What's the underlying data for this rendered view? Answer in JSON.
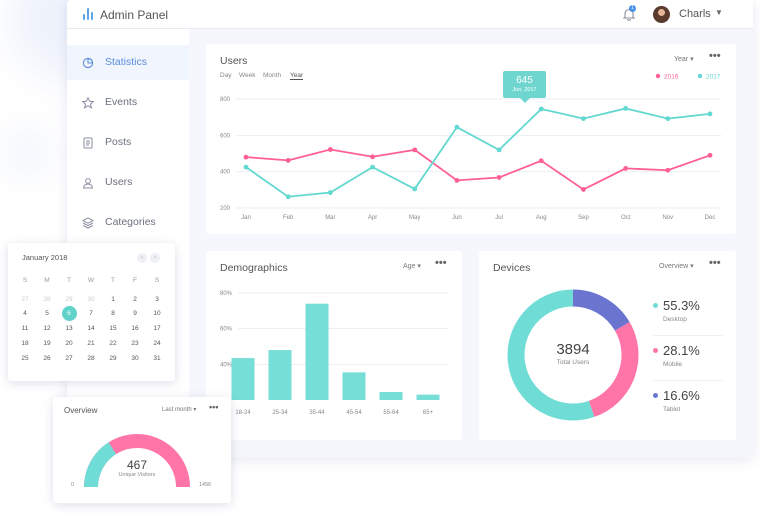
{
  "app": {
    "title": "Admin Panel",
    "notification_count": "1",
    "user_name": "Charls"
  },
  "sidebar": {
    "items": [
      {
        "label": "Statistics",
        "icon": "pie-chart-icon",
        "active": true
      },
      {
        "label": "Events",
        "icon": "star-icon",
        "active": false
      },
      {
        "label": "Posts",
        "icon": "document-icon",
        "active": false
      },
      {
        "label": "Users",
        "icon": "user-icon",
        "active": false
      },
      {
        "label": "Categories",
        "icon": "layers-icon",
        "active": false
      }
    ]
  },
  "users_card": {
    "title": "Users",
    "period_tabs": [
      "Day",
      "Week",
      "Month",
      "Year"
    ],
    "active_tab": "Year",
    "dropdown": "Year",
    "tooltip": {
      "value": "645",
      "date": "Jun, 2017"
    }
  },
  "demographics_card": {
    "title": "Demographics",
    "dropdown": "Age"
  },
  "devices_card": {
    "title": "Devices",
    "dropdown": "Overview",
    "total_value": "3894",
    "total_label": "Total Users",
    "legend": [
      {
        "percent": "55.3%",
        "label": "Desktop",
        "color": "#6fddd6"
      },
      {
        "percent": "28.1%",
        "label": "Mobile",
        "color": "#ff75a8"
      },
      {
        "percent": "16.6%",
        "label": "Tablet",
        "color": "#6b74cf"
      }
    ]
  },
  "calendar": {
    "month": "January 2018",
    "weekdays": [
      "S",
      "M",
      "T",
      "W",
      "T",
      "F",
      "S"
    ],
    "weeks": [
      [
        "27",
        "28",
        "29",
        "30",
        "1",
        "2",
        "3"
      ],
      [
        "4",
        "5",
        "6",
        "7",
        "8",
        "9",
        "10"
      ],
      [
        "11",
        "12",
        "13",
        "14",
        "15",
        "16",
        "17"
      ],
      [
        "18",
        "19",
        "20",
        "21",
        "22",
        "23",
        "24"
      ],
      [
        "25",
        "26",
        "27",
        "28",
        "29",
        "30",
        "31"
      ]
    ],
    "selected": "6"
  },
  "overview_card": {
    "title": "Overview",
    "dropdown": "Last month",
    "value": "467",
    "value_label": "Unique Visitors",
    "min_label": "0",
    "max_label": "1456",
    "fraction": 0.32
  },
  "chart_data": [
    {
      "type": "line",
      "title": "Users",
      "x": [
        "Jan",
        "Feb",
        "Mar",
        "Apr",
        "May",
        "Jun",
        "Jul",
        "Aug",
        "Sep",
        "Oct",
        "Nov",
        "Dec"
      ],
      "yticks": [
        200,
        400,
        600,
        800
      ],
      "ylim": [
        200,
        800
      ],
      "series": [
        {
          "name": "2016",
          "color": "#ff5f94",
          "values": [
            480,
            462,
            522,
            482,
            520,
            352,
            368,
            460,
            302,
            418,
            408,
            490
          ]
        },
        {
          "name": "2017",
          "color": "#62d8d0",
          "values": [
            425,
            262,
            285,
            425,
            305,
            645,
            520,
            745,
            692,
            748,
            692,
            718
          ]
        }
      ],
      "legend": "top-right",
      "grid": true
    },
    {
      "type": "bar",
      "title": "Demographics",
      "categories": [
        "18-24",
        "25-34",
        "35-44",
        "45-54",
        "55-64",
        "65+"
      ],
      "values": [
        43.5,
        48,
        74,
        35.5,
        24.5,
        23
      ],
      "yticks": [
        "40%",
        "60%",
        "80%"
      ],
      "ytick_values": [
        40,
        60,
        80
      ],
      "ylim": [
        20,
        80
      ],
      "color": "#76ded6"
    },
    {
      "type": "pie",
      "title": "Devices",
      "labels": [
        "Desktop",
        "Mobile",
        "Tablet"
      ],
      "values": [
        55.3,
        28.1,
        16.6
      ],
      "colors": [
        "#6fddd6",
        "#ff75a8",
        "#6b74cf"
      ]
    }
  ]
}
